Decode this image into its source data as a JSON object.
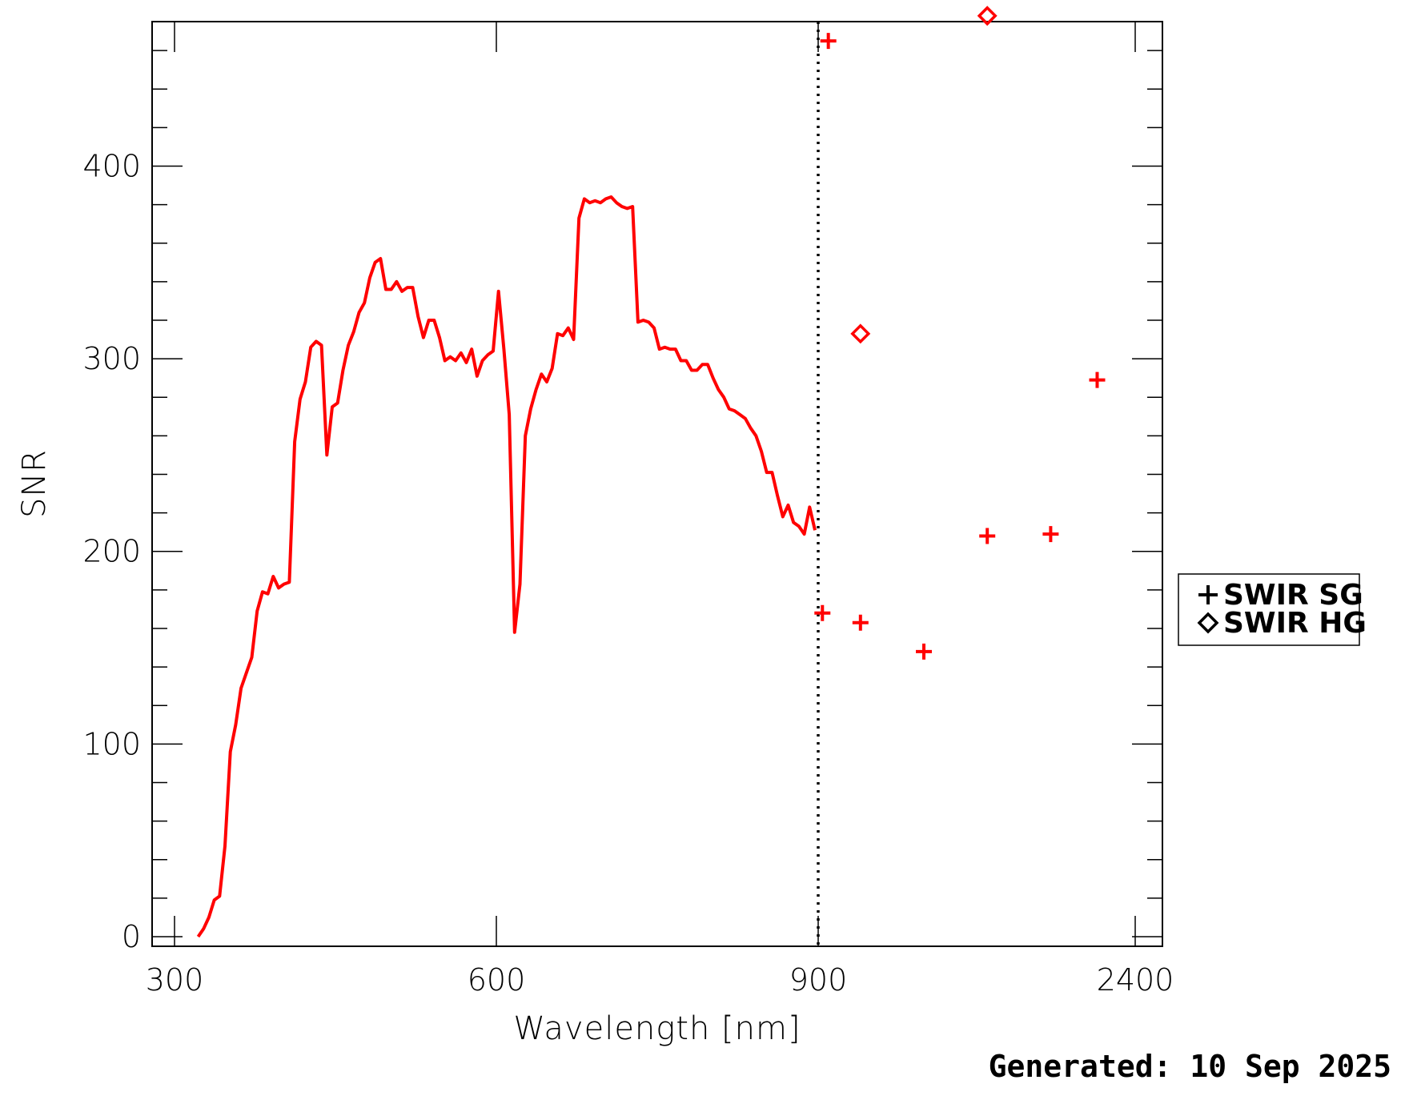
{
  "chart_data": {
    "type": "line",
    "xlabel": "Wavelength [nm]",
    "ylabel": "SNR",
    "yticks": [
      0,
      100,
      200,
      300,
      400
    ],
    "ylim": [
      -5,
      475
    ],
    "x_tick_labels": [
      "300",
      "600",
      "900",
      "2400"
    ],
    "colors": {
      "series": "#ff0000",
      "axes": "#000000"
    },
    "grid": false,
    "legend_placement": "right",
    "divider_style": "dotted",
    "series": [
      {
        "name": "",
        "style": "line",
        "x": [
          322,
          327,
          332,
          337,
          342,
          347,
          352,
          357,
          362,
          367,
          372,
          377,
          382,
          387,
          392,
          397,
          402,
          407,
          412,
          417,
          422,
          427,
          432,
          437,
          442,
          447,
          452,
          457,
          462,
          467,
          472,
          477,
          482,
          487,
          492,
          497,
          502,
          507,
          512,
          517,
          522,
          527,
          532,
          537,
          542,
          547,
          552,
          557,
          562,
          567,
          572,
          577,
          582,
          587,
          592,
          597,
          602,
          607,
          612,
          617,
          622,
          627,
          632,
          637,
          642,
          647,
          652,
          657,
          662,
          667,
          672,
          677,
          682,
          687,
          692,
          697,
          702,
          707,
          712,
          717,
          722,
          727,
          732,
          737,
          742,
          747,
          752,
          757,
          762,
          767,
          772,
          777,
          782,
          787,
          792,
          797,
          802,
          807,
          812,
          817,
          822,
          827,
          832,
          837,
          842,
          847,
          852,
          857,
          862,
          867,
          872,
          877,
          882,
          887,
          892,
          897
        ],
        "y": [
          0,
          4,
          10,
          19,
          21,
          47,
          96,
          110,
          129,
          137,
          145,
          169,
          179,
          178,
          187,
          181,
          183,
          184,
          257,
          279,
          288,
          306,
          309,
          307,
          250,
          275,
          277,
          294,
          307,
          314,
          324,
          329,
          342,
          350,
          352,
          336,
          336,
          340,
          335,
          337,
          337,
          322,
          311,
          320,
          320,
          311,
          299,
          301,
          299,
          303,
          298,
          305,
          291,
          299,
          302,
          304,
          335,
          305,
          271,
          158,
          183,
          260,
          274,
          284,
          292,
          288,
          295,
          313,
          312,
          316,
          310,
          373,
          383,
          381,
          382,
          381,
          383,
          384,
          381,
          379,
          378,
          379,
          319,
          320,
          319,
          316,
          305,
          306,
          305,
          305,
          299,
          299,
          294,
          294,
          297,
          297,
          290,
          284,
          280,
          274,
          273,
          271,
          269,
          264,
          260,
          252,
          241,
          241,
          229,
          218,
          224,
          215,
          213,
          209,
          223,
          211
        ]
      },
      {
        "name": "SWIR SG",
        "style": "plus",
        "x": [
          920,
          948,
          1100,
          1400,
          1700,
          2000,
          2220
        ],
        "y": [
          168,
          465,
          163,
          148,
          208,
          209,
          289
        ]
      },
      {
        "name": "SWIR HG",
        "style": "diamond",
        "x": [
          1100,
          1700
        ],
        "y": [
          313,
          478
        ]
      }
    ]
  },
  "legend": {
    "items": [
      {
        "label": "SWIR SG",
        "symbol": "plus"
      },
      {
        "label": "SWIR HG",
        "symbol": "diamond"
      }
    ]
  },
  "footer": {
    "generated": "Generated: 10 Sep 2025"
  }
}
